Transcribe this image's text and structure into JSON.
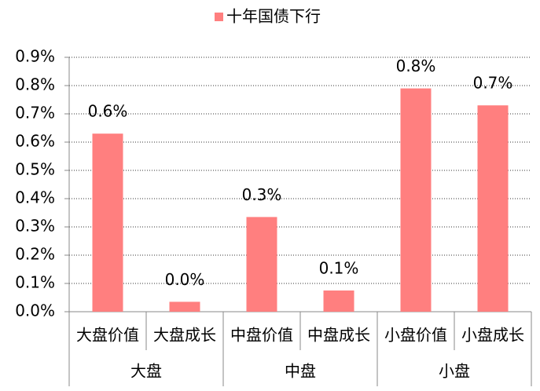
{
  "chart_data": {
    "type": "bar",
    "categories": [
      "大盘价值",
      "大盘成长",
      "中盘价值",
      "中盘成长",
      "小盘价值",
      "小盘成长"
    ],
    "groups": [
      "大盘",
      "中盘",
      "小盘"
    ],
    "series": [
      {
        "name": "十年国债下行",
        "color": "#ff7f7f",
        "values": [
          0.63,
          0.035,
          0.335,
          0.075,
          0.79,
          0.73
        ],
        "value_labels": [
          "0.6%",
          "0.0%",
          "0.3%",
          "0.1%",
          "0.8%",
          "0.7%"
        ]
      }
    ],
    "ylim": [
      0,
      0.9
    ],
    "yticks": [
      {
        "value": 0,
        "label": "0.0%"
      },
      {
        "value": 0.1,
        "label": "0.1%"
      },
      {
        "value": 0.2,
        "label": "0.2%"
      },
      {
        "value": 0.3,
        "label": "0.3%"
      },
      {
        "value": 0.4,
        "label": "0.4%"
      },
      {
        "value": 0.5,
        "label": "0.5%"
      },
      {
        "value": 0.6,
        "label": "0.6%"
      },
      {
        "value": 0.7,
        "label": "0.7%"
      },
      {
        "value": 0.8,
        "label": "0.8%"
      },
      {
        "value": 0.9,
        "label": "0.9%"
      }
    ],
    "grid": true,
    "legend": "top"
  }
}
